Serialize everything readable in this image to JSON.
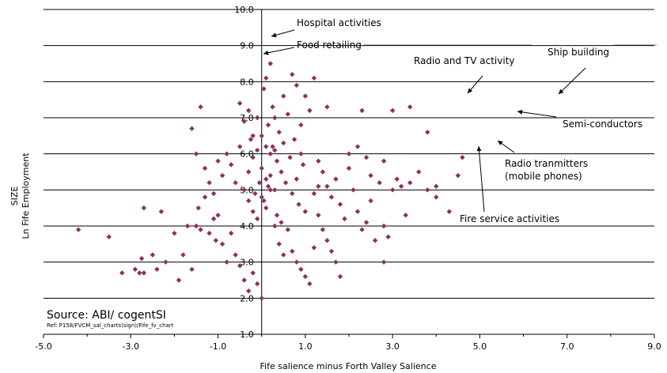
{
  "chart_data": {
    "type": "scatter",
    "xlabel": "Fife salience minus Forth Valley Salience",
    "ylabel_lines": [
      "SIZE",
      "Ln Fife Employment"
    ],
    "xlim": [
      -5,
      9
    ],
    "ylim": [
      1,
      10
    ],
    "xticks": [
      -5,
      -3,
      -1,
      1,
      3,
      5,
      7,
      9
    ],
    "xtick_labels": [
      "-5.0",
      "-3.0",
      "-1.0",
      "1.0",
      "3.0",
      "5.0",
      "7.0",
      "9.0"
    ],
    "yticks": [
      1,
      2,
      3,
      4,
      5,
      6,
      7,
      8,
      9,
      10
    ],
    "ytick_labels": [
      "1.0",
      "2.0",
      "3.0",
      "4.0",
      "5.0",
      "6.0",
      "7.0",
      "8.0",
      "9.0",
      "10.0"
    ],
    "gridlines": "horizontal",
    "marker_color": "#8b2f62",
    "source_text": "Source:  ABI/ cogentSI",
    "ref_text": "Ref: P158/FVCM_sal_charts(sign)/Fife_fv_chart",
    "annotations": [
      {
        "text": "Hospital activities",
        "point": [
          -0.02,
          9.3
        ]
      },
      {
        "text": "Food retailing",
        "point": [
          -0.05,
          8.8
        ]
      },
      {
        "text": "Radio and TV activity",
        "point": [
          4.6,
          7.55
        ]
      },
      {
        "text": "Ship building",
        "point": [
          6.65,
          7.5
        ]
      },
      {
        "text": "Semi-conductors",
        "point": [
          5.75,
          7.2
        ]
      },
      {
        "text": "Radio tranmitters",
        "point": [
          5.3,
          6.3
        ]
      },
      {
        "text": "(mobile phones)",
        "point": null
      },
      {
        "text": "Fire service activities",
        "point": [
          4.9,
          6.4
        ]
      }
    ],
    "points": [
      [
        -4.2,
        3.9
      ],
      [
        -3.5,
        3.7
      ],
      [
        -3.2,
        2.7
      ],
      [
        -2.9,
        2.8
      ],
      [
        -2.8,
        2.7
      ],
      [
        -2.7,
        2.7
      ],
      [
        -2.75,
        3.1
      ],
      [
        -2.7,
        4.5
      ],
      [
        -2.5,
        3.2
      ],
      [
        -2.4,
        2.8
      ],
      [
        -2.3,
        4.4
      ],
      [
        -2.2,
        3.0
      ],
      [
        -2.0,
        3.8
      ],
      [
        -1.9,
        2.5
      ],
      [
        -1.8,
        3.2
      ],
      [
        -1.7,
        4.0
      ],
      [
        -1.6,
        2.8
      ],
      [
        -1.5,
        4.0
      ],
      [
        -1.45,
        4.5
      ],
      [
        -1.4,
        3.9
      ],
      [
        -1.3,
        4.8
      ],
      [
        -1.2,
        3.8
      ],
      [
        -1.1,
        4.2
      ],
      [
        -1.05,
        3.6
      ],
      [
        -1.0,
        4.3
      ],
      [
        -0.9,
        3.5
      ],
      [
        -0.8,
        3.0
      ],
      [
        -0.7,
        3.8
      ],
      [
        -0.6,
        3.2
      ],
      [
        -0.5,
        2.9
      ],
      [
        -0.4,
        2.5
      ],
      [
        -0.3,
        2.2
      ],
      [
        -0.2,
        2.7
      ],
      [
        -0.1,
        2.4
      ],
      [
        0.0,
        2.0
      ],
      [
        -1.6,
        6.7
      ],
      [
        -1.5,
        6.0
      ],
      [
        -1.4,
        7.3
      ],
      [
        -1.3,
        5.6
      ],
      [
        -1.2,
        5.2
      ],
      [
        -1.1,
        4.9
      ],
      [
        -1.0,
        5.8
      ],
      [
        -0.9,
        5.4
      ],
      [
        -0.8,
        6.0
      ],
      [
        -0.7,
        5.7
      ],
      [
        -0.6,
        5.2
      ],
      [
        -0.5,
        6.2
      ],
      [
        -0.4,
        5.0
      ],
      [
        -0.3,
        4.7
      ],
      [
        -0.2,
        4.4
      ],
      [
        -0.1,
        4.2
      ],
      [
        0.0,
        4.8
      ],
      [
        0.1,
        4.5
      ],
      [
        0.2,
        5.0
      ],
      [
        0.3,
        4.0
      ],
      [
        0.4,
        3.5
      ],
      [
        0.5,
        3.2
      ],
      [
        0.6,
        3.9
      ],
      [
        0.7,
        3.3
      ],
      [
        0.8,
        3.0
      ],
      [
        0.9,
        2.8
      ],
      [
        1.0,
        2.6
      ],
      [
        1.1,
        2.4
      ],
      [
        -0.5,
        7.4
      ],
      [
        -0.4,
        6.9
      ],
      [
        -0.3,
        7.2
      ],
      [
        -0.2,
        6.5
      ],
      [
        -0.1,
        7.0
      ],
      [
        0.0,
        6.5
      ],
      [
        0.05,
        7.8
      ],
      [
        0.1,
        6.2
      ],
      [
        0.15,
        6.8
      ],
      [
        0.2,
        6.0
      ],
      [
        0.25,
        7.3
      ],
      [
        0.3,
        6.1
      ],
      [
        0.35,
        5.8
      ],
      [
        0.4,
        6.6
      ],
      [
        0.45,
        5.5
      ],
      [
        0.5,
        6.3
      ],
      [
        0.55,
        5.2
      ],
      [
        0.6,
        7.1
      ],
      [
        0.65,
        5.9
      ],
      [
        0.7,
        4.9
      ],
      [
        0.75,
        6.4
      ],
      [
        0.8,
        5.3
      ],
      [
        0.85,
        4.6
      ],
      [
        0.9,
        6.0
      ],
      [
        0.95,
        5.7
      ],
      [
        1.0,
        4.4
      ],
      [
        -0.3,
        5.5
      ],
      [
        -0.2,
        5.9
      ],
      [
        -0.1,
        6.1
      ],
      [
        0.0,
        5.6
      ],
      [
        0.1,
        5.3
      ],
      [
        0.15,
        5.1
      ],
      [
        0.2,
        5.4
      ],
      [
        0.25,
        6.2
      ],
      [
        0.3,
        5.0
      ],
      [
        -0.15,
        4.9
      ],
      [
        -0.05,
        5.2
      ],
      [
        0.05,
        4.7
      ],
      [
        -0.25,
        6.4
      ],
      [
        0.35,
        4.3
      ],
      [
        0.45,
        4.1
      ],
      [
        0.1,
        8.1
      ],
      [
        0.2,
        8.5
      ],
      [
        0.5,
        7.6
      ],
      [
        0.7,
        8.2
      ],
      [
        0.8,
        7.9
      ],
      [
        1.0,
        7.6
      ],
      [
        1.2,
        8.1
      ],
      [
        0.3,
        7.0
      ],
      [
        0.9,
        6.8
      ],
      [
        1.1,
        7.2
      ],
      [
        1.3,
        5.8
      ],
      [
        1.4,
        5.5
      ],
      [
        1.5,
        5.1
      ],
      [
        1.6,
        4.8
      ],
      [
        1.7,
        5.3
      ],
      [
        1.8,
        4.6
      ],
      [
        1.9,
        4.2
      ],
      [
        2.0,
        5.6
      ],
      [
        2.1,
        5.0
      ],
      [
        2.2,
        4.4
      ],
      [
        2.3,
        3.9
      ],
      [
        2.4,
        4.1
      ],
      [
        2.5,
        4.7
      ],
      [
        2.6,
        3.6
      ],
      [
        2.7,
        5.2
      ],
      [
        2.8,
        4.0
      ],
      [
        2.9,
        3.7
      ],
      [
        1.2,
        4.9
      ],
      [
        1.3,
        4.3
      ],
      [
        1.4,
        3.9
      ],
      [
        1.5,
        3.6
      ],
      [
        1.6,
        3.3
      ],
      [
        1.7,
        3.0
      ],
      [
        1.8,
        2.6
      ],
      [
        1.2,
        3.4
      ],
      [
        1.3,
        5.1
      ],
      [
        1.5,
        7.3
      ],
      [
        2.3,
        7.2
      ],
      [
        3.0,
        7.2
      ],
      [
        3.4,
        7.3
      ],
      [
        3.8,
        6.6
      ],
      [
        2.0,
        6.0
      ],
      [
        2.2,
        6.2
      ],
      [
        2.5,
        5.4
      ],
      [
        2.8,
        5.8
      ],
      [
        3.0,
        5.0
      ],
      [
        3.2,
        5.1
      ],
      [
        3.4,
        5.2
      ],
      [
        3.6,
        5.5
      ],
      [
        3.8,
        5.0
      ],
      [
        3.3,
        4.3
      ],
      [
        4.0,
        5.1
      ],
      [
        4.3,
        4.4
      ],
      [
        4.5,
        5.4
      ],
      [
        4.6,
        5.9
      ],
      [
        2.8,
        3.0
      ],
      [
        4.0,
        4.8
      ],
      [
        2.4,
        5.9
      ],
      [
        3.1,
        5.3
      ]
    ]
  }
}
